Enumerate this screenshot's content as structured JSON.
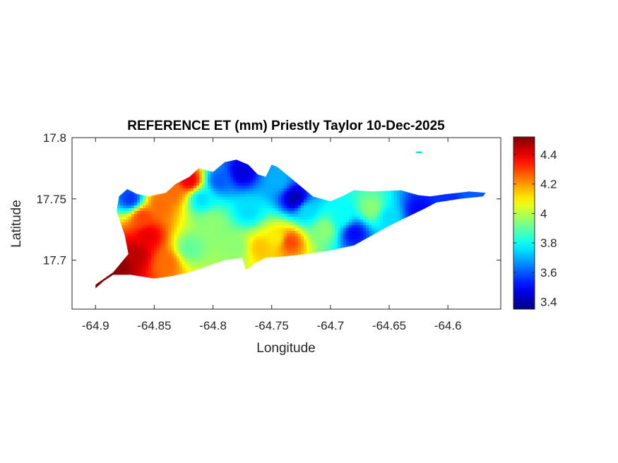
{
  "chart_data": {
    "type": "heatmap",
    "title": "REFERENCE ET (mm) Priestly Taylor 10-Dec-2025",
    "xlabel": "Longitude",
    "ylabel": "Latitude",
    "xlim": [
      -64.92,
      -64.555
    ],
    "ylim": [
      17.66,
      17.8
    ],
    "x_ticks": [
      -64.9,
      -64.85,
      -64.8,
      -64.75,
      -64.7,
      -64.65,
      -64.6
    ],
    "x_tick_labels": [
      "-64.9",
      "-64.85",
      "-64.8",
      "-64.75",
      "-64.7",
      "-64.65",
      "-64.6"
    ],
    "y_ticks": [
      17.7,
      17.75,
      17.8
    ],
    "y_tick_labels": [
      "17.7",
      "17.75",
      "17.8"
    ],
    "grid": false,
    "colormap": "jet",
    "colorbar": {
      "clim": [
        3.35,
        4.52
      ],
      "ticks": [
        3.4,
        3.6,
        3.8,
        4,
        4.2,
        4.4
      ],
      "tick_labels": [
        "3.4",
        "3.6",
        "3.8",
        "4",
        "4.2",
        "4.4"
      ],
      "location": "right"
    },
    "island_outline": [
      [
        -64.9,
        17.68
      ],
      [
        -64.885,
        17.69
      ],
      [
        -64.872,
        17.705
      ],
      [
        -64.875,
        17.72
      ],
      [
        -64.882,
        17.74
      ],
      [
        -64.88,
        17.752
      ],
      [
        -64.873,
        17.758
      ],
      [
        -64.865,
        17.754
      ],
      [
        -64.855,
        17.752
      ],
      [
        -64.84,
        17.755
      ],
      [
        -64.832,
        17.762
      ],
      [
        -64.82,
        17.768
      ],
      [
        -64.812,
        17.775
      ],
      [
        -64.8,
        17.772
      ],
      [
        -64.79,
        17.78
      ],
      [
        -64.78,
        17.782
      ],
      [
        -64.77,
        17.778
      ],
      [
        -64.762,
        17.77
      ],
      [
        -64.755,
        17.768
      ],
      [
        -64.75,
        17.778
      ],
      [
        -64.745,
        17.776
      ],
      [
        -64.735,
        17.768
      ],
      [
        -64.725,
        17.76
      ],
      [
        -64.715,
        17.752
      ],
      [
        -64.7,
        17.748
      ],
      [
        -64.69,
        17.752
      ],
      [
        -64.68,
        17.757
      ],
      [
        -64.665,
        17.756
      ],
      [
        -64.64,
        17.757
      ],
      [
        -64.625,
        17.753
      ],
      [
        -64.615,
        17.752
      ],
      [
        -64.6,
        17.754
      ],
      [
        -64.582,
        17.756
      ],
      [
        -64.568,
        17.755
      ],
      [
        -64.57,
        17.752
      ],
      [
        -64.59,
        17.75
      ],
      [
        -64.61,
        17.747
      ],
      [
        -64.62,
        17.742
      ],
      [
        -64.635,
        17.735
      ],
      [
        -64.65,
        17.728
      ],
      [
        -64.665,
        17.72
      ],
      [
        -64.68,
        17.712
      ],
      [
        -64.7,
        17.708
      ],
      [
        -64.72,
        17.705
      ],
      [
        -64.74,
        17.703
      ],
      [
        -64.755,
        17.702
      ],
      [
        -64.765,
        17.697
      ],
      [
        -64.772,
        17.692
      ],
      [
        -64.775,
        17.702
      ],
      [
        -64.79,
        17.7
      ],
      [
        -64.805,
        17.695
      ],
      [
        -64.82,
        17.69
      ],
      [
        -64.835,
        17.687
      ],
      [
        -64.85,
        17.685
      ],
      [
        -64.87,
        17.688
      ],
      [
        -64.885,
        17.688
      ],
      [
        -64.893,
        17.683
      ],
      [
        -64.9,
        17.677
      ]
    ],
    "islet": {
      "lon": [
        -64.627,
        -64.622
      ],
      "lat": 17.788
    },
    "field_sources": [
      {
        "lon": -64.893,
        "lat": 17.688,
        "value": 4.55
      },
      {
        "lon": -64.88,
        "lat": 17.695,
        "value": 4.5
      },
      {
        "lon": -64.865,
        "lat": 17.705,
        "value": 4.45
      },
      {
        "lon": -64.855,
        "lat": 17.72,
        "value": 4.4
      },
      {
        "lon": -64.86,
        "lat": 17.735,
        "value": 4.3
      },
      {
        "lon": -64.845,
        "lat": 17.745,
        "value": 4.25
      },
      {
        "lon": -64.835,
        "lat": 17.755,
        "value": 4.25
      },
      {
        "lon": -64.82,
        "lat": 17.765,
        "value": 4.4
      },
      {
        "lon": -64.87,
        "lat": 17.75,
        "value": 3.55
      },
      {
        "lon": -64.84,
        "lat": 17.698,
        "value": 4.25
      },
      {
        "lon": -64.82,
        "lat": 17.71,
        "value": 3.9
      },
      {
        "lon": -64.8,
        "lat": 17.73,
        "value": 3.95
      },
      {
        "lon": -64.81,
        "lat": 17.75,
        "value": 3.75
      },
      {
        "lon": -64.795,
        "lat": 17.765,
        "value": 3.6
      },
      {
        "lon": -64.775,
        "lat": 17.772,
        "value": 3.45
      },
      {
        "lon": -64.77,
        "lat": 17.74,
        "value": 3.75
      },
      {
        "lon": -64.78,
        "lat": 17.71,
        "value": 3.95
      },
      {
        "lon": -64.76,
        "lat": 17.71,
        "value": 4.15
      },
      {
        "lon": -64.745,
        "lat": 17.718,
        "value": 4.1
      },
      {
        "lon": -64.735,
        "lat": 17.715,
        "value": 4.3
      },
      {
        "lon": -64.745,
        "lat": 17.765,
        "value": 3.7
      },
      {
        "lon": -64.73,
        "lat": 17.75,
        "value": 3.4
      },
      {
        "lon": -64.72,
        "lat": 17.74,
        "value": 3.75
      },
      {
        "lon": -64.705,
        "lat": 17.725,
        "value": 3.95
      },
      {
        "lon": -64.69,
        "lat": 17.735,
        "value": 3.8
      },
      {
        "lon": -64.68,
        "lat": 17.722,
        "value": 3.5
      },
      {
        "lon": -64.665,
        "lat": 17.742,
        "value": 3.95
      },
      {
        "lon": -64.65,
        "lat": 17.735,
        "value": 3.75
      },
      {
        "lon": -64.625,
        "lat": 17.74,
        "value": 3.5
      },
      {
        "lon": -64.6,
        "lat": 17.75,
        "value": 3.55
      },
      {
        "lon": -64.58,
        "lat": 17.754,
        "value": 3.6
      }
    ]
  }
}
